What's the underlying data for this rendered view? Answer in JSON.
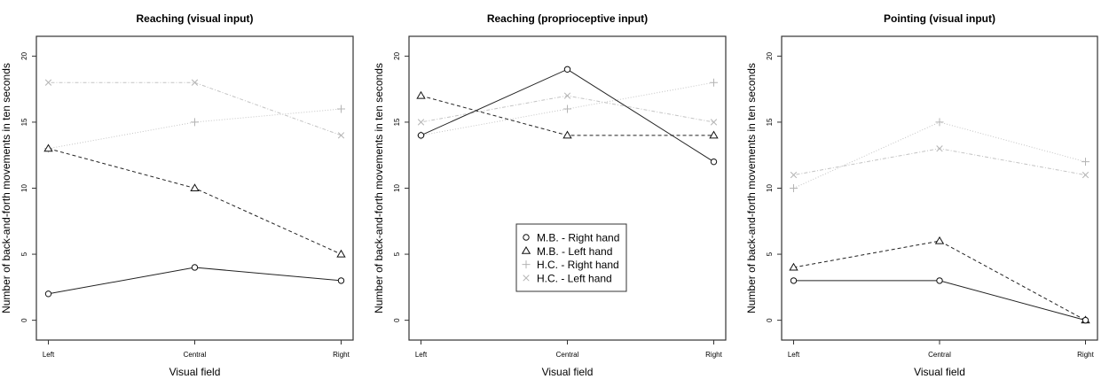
{
  "chart_data": [
    {
      "type": "line",
      "title": "Reaching (visual input)",
      "xlabel": "Visual field",
      "ylabel": "Number of back-and-forth movements in ten seconds",
      "categories": [
        "Left",
        "Central",
        "Right"
      ],
      "yticks": [
        0,
        5,
        10,
        15,
        20
      ],
      "ylim": [
        -1.5,
        21.5
      ],
      "series": [
        {
          "name": "M.B. - Right hand",
          "marker": "circle",
          "line": "solid",
          "color": "#000000",
          "values": [
            2,
            4,
            3
          ]
        },
        {
          "name": "M.B. - Left hand",
          "marker": "triangle",
          "line": "dashed",
          "color": "#000000",
          "values": [
            13,
            10,
            5
          ]
        },
        {
          "name": "H.C. - Right hand",
          "marker": "plus",
          "line": "dotted",
          "color": "#bebebe",
          "values": [
            13,
            15,
            16
          ]
        },
        {
          "name": "H.C. - Left hand",
          "marker": "cross",
          "line": "dotdash",
          "color": "#bebebe",
          "values": [
            18,
            18,
            14
          ]
        }
      ],
      "legend": null
    },
    {
      "type": "line",
      "title": "Reaching (proprioceptive input)",
      "xlabel": "Visual field",
      "ylabel": "Number of back-and-forth movements in ten seconds",
      "categories": [
        "Left",
        "Central",
        "Right"
      ],
      "yticks": [
        0,
        5,
        10,
        15,
        20
      ],
      "ylim": [
        -1.5,
        21.5
      ],
      "series": [
        {
          "name": "M.B. - Right hand",
          "marker": "circle",
          "line": "solid",
          "color": "#000000",
          "values": [
            14,
            19,
            12
          ]
        },
        {
          "name": "M.B. - Left hand",
          "marker": "triangle",
          "line": "dashed",
          "color": "#000000",
          "values": [
            17,
            14,
            14
          ]
        },
        {
          "name": "H.C. - Right hand",
          "marker": "plus",
          "line": "dotted",
          "color": "#bebebe",
          "values": [
            14,
            16,
            18
          ]
        },
        {
          "name": "H.C. - Left hand",
          "marker": "cross",
          "line": "dotdash",
          "color": "#bebebe",
          "values": [
            15,
            17,
            15
          ]
        }
      ],
      "legend": "center",
      "legend_entries": [
        "M.B. - Right hand",
        "M.B. - Left hand",
        "H.C. - Right hand",
        "H.C. - Left hand"
      ]
    },
    {
      "type": "line",
      "title": "Pointing (visual input)",
      "xlabel": "Visual field",
      "ylabel": "Number of back-and-forth movements in ten seconds",
      "categories": [
        "Left",
        "Central",
        "Right"
      ],
      "yticks": [
        0,
        5,
        10,
        15,
        20
      ],
      "ylim": [
        -1.5,
        21.5
      ],
      "series": [
        {
          "name": "M.B. - Right hand",
          "marker": "circle",
          "line": "solid",
          "color": "#000000",
          "values": [
            3,
            3,
            0
          ]
        },
        {
          "name": "M.B. - Left hand",
          "marker": "triangle",
          "line": "dashed",
          "color": "#000000",
          "values": [
            4,
            6,
            0
          ]
        },
        {
          "name": "H.C. - Right hand",
          "marker": "plus",
          "line": "dotted",
          "color": "#bebebe",
          "values": [
            10,
            15,
            12
          ]
        },
        {
          "name": "H.C. - Left hand",
          "marker": "cross",
          "line": "dotdash",
          "color": "#bebebe",
          "values": [
            11,
            13,
            11
          ]
        }
      ],
      "legend": null
    }
  ]
}
